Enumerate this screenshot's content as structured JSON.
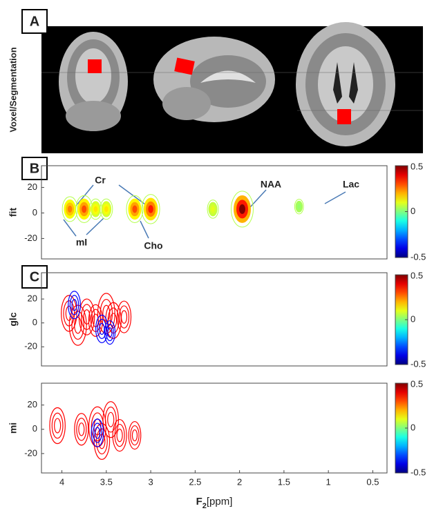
{
  "panels": {
    "a": "A",
    "b": "B",
    "c": "C"
  },
  "side_label": "Voxel/Segmentation",
  "chart_data": [
    {
      "type": "contour",
      "y_label": "fit",
      "xlim": [
        4.23,
        0.34
      ],
      "ylim": [
        -36,
        37
      ],
      "yticks": [
        20,
        0,
        -20
      ],
      "clim": [
        -0.5,
        0.5
      ],
      "cticks": [
        0.5,
        0,
        -0.5
      ],
      "annotations": [
        "Cr",
        "NAA",
        "Lac",
        "mI",
        "Cho"
      ],
      "peaks": {
        "x": [
          3.91,
          3.75,
          3.62,
          3.5,
          3.18,
          3.0,
          2.3,
          1.97,
          1.33
        ],
        "y": [
          3,
          3,
          3,
          3,
          3,
          3,
          3,
          3,
          5
        ],
        "values": [
          0.25,
          0.3,
          0.15,
          0.15,
          0.3,
          0.35,
          0.1,
          0.5,
          0.02
        ]
      }
    },
    {
      "type": "contour",
      "y_label": "glc",
      "xlim": [
        4.23,
        0.34
      ],
      "ylim": [
        -36,
        42
      ],
      "yticks": [
        20,
        0,
        -20
      ],
      "clim": [
        -0.5,
        0.5
      ],
      "cticks": [
        0.5,
        0,
        -0.5
      ],
      "peaks": {
        "x": [
          3.92,
          3.82,
          3.72,
          3.62,
          3.5,
          3.42,
          3.3,
          3.86,
          3.55,
          3.46
        ],
        "y": [
          8,
          -2,
          5,
          2,
          8,
          2,
          5,
          15,
          -5,
          -8
        ],
        "values": [
          0.3,
          0.35,
          0.3,
          0.25,
          0.35,
          0.3,
          0.25,
          -0.2,
          -0.2,
          -0.15
        ]
      }
    },
    {
      "type": "contour",
      "y_label": "mi",
      "xlim": [
        4.23,
        0.34
      ],
      "ylim": [
        -36,
        38
      ],
      "yticks": [
        20,
        0,
        -20
      ],
      "clim": [
        -0.5,
        0.5
      ],
      "cticks": [
        0.5,
        0,
        -0.5
      ],
      "xticks": [
        4,
        3.5,
        3,
        2.5,
        2,
        1.5,
        1,
        0.5
      ],
      "x_label": {
        "main": "F",
        "sub": "2",
        "unit": "[ppm]"
      },
      "peaks": {
        "x": [
          4.05,
          3.78,
          3.6,
          3.55,
          3.45,
          3.35,
          3.18,
          3.6
        ],
        "y": [
          3,
          0,
          2,
          -10,
          8,
          -5,
          -5,
          -3
        ],
        "values": [
          0.3,
          0.25,
          0.35,
          0.3,
          0.3,
          0.25,
          0.2,
          -0.2
        ]
      }
    }
  ]
}
